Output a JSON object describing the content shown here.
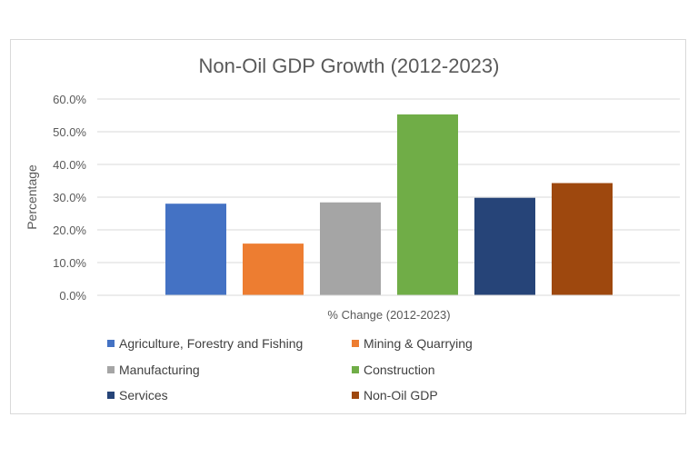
{
  "chart_data": {
    "type": "bar",
    "title": "Non-Oil GDP Growth (2012-2023)",
    "xlabel": "% Change (2012-2023)",
    "ylabel": "Percentage",
    "categories": [
      "% Change (2012-2023)"
    ],
    "ylim": [
      0,
      60
    ],
    "ytick_values": [
      0,
      10,
      20,
      30,
      40,
      50,
      60
    ],
    "ytick_labels": [
      "0.0%",
      "10.0%",
      "20.0%",
      "30.0%",
      "40.0%",
      "50.0%",
      "60.0%"
    ],
    "grid": true,
    "legend_placement": "bottom",
    "series": [
      {
        "name": "Agriculture, Forestry and Fishing",
        "values": [
          28.0
        ],
        "color": "#4472c4"
      },
      {
        "name": "Mining & Quarrying",
        "values": [
          15.8
        ],
        "color": "#ed7d31"
      },
      {
        "name": "Manufacturing",
        "values": [
          28.4
        ],
        "color": "#a5a5a5"
      },
      {
        "name": "Construction",
        "values": [
          55.3
        ],
        "color": "#70ad47"
      },
      {
        "name": "Services",
        "values": [
          29.8
        ],
        "color": "#264478"
      },
      {
        "name": "Non-Oil GDP",
        "values": [
          34.3
        ],
        "color": "#9e480e"
      }
    ]
  }
}
